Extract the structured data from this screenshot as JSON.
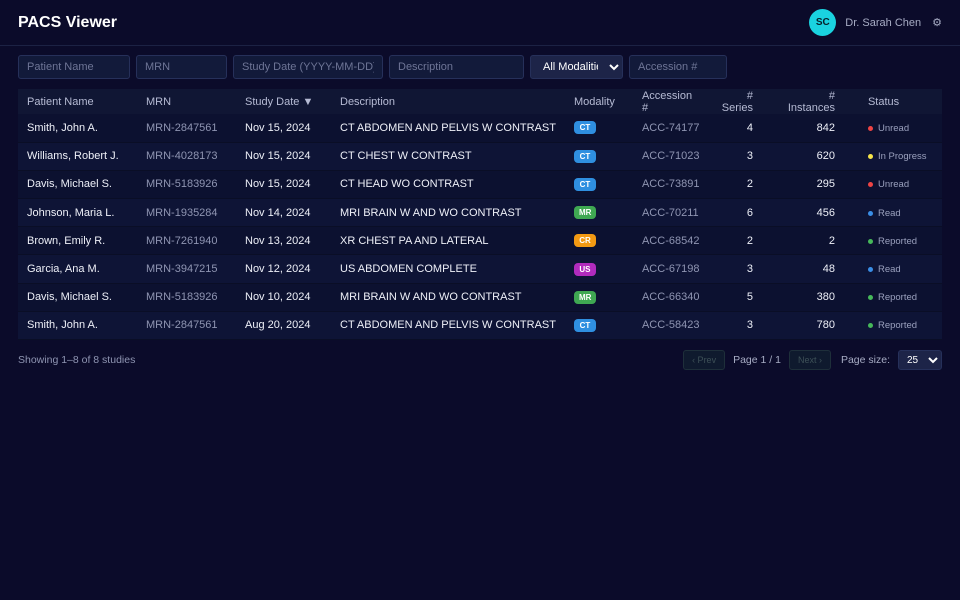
{
  "header": {
    "title": "PACS Viewer",
    "user_initials": "SC",
    "user_name": "Dr. Sarah Chen",
    "settings_icon": "⚙"
  },
  "filters": {
    "patient_name_placeholder": "Patient Name",
    "mrn_placeholder": "MRN",
    "study_date_placeholder": "Study Date (YYYY-MM-DD)",
    "description_placeholder": "Description",
    "modality_selected": "All Modalities",
    "accession_placeholder": "Accession #"
  },
  "table": {
    "columns": {
      "patient": "Patient Name",
      "mrn": "MRN",
      "date": "Study Date ▼",
      "description": "Description",
      "modality": "Modality",
      "accession": "Accession #",
      "series": "# Series",
      "instances": "# Instances",
      "status": "Status"
    },
    "rows": [
      {
        "patient": "Smith, John A.",
        "mrn": "MRN-2847561",
        "date": "Nov 15, 2024",
        "description": "CT ABDOMEN AND PELVIS W CONTRAST",
        "modality": "CT",
        "accession": "ACC-74177",
        "series": "4",
        "instances": "842",
        "status": "Unread"
      },
      {
        "patient": "Williams, Robert J.",
        "mrn": "MRN-4028173",
        "date": "Nov 15, 2024",
        "description": "CT CHEST W CONTRAST",
        "modality": "CT",
        "accession": "ACC-71023",
        "series": "3",
        "instances": "620",
        "status": "In Progress"
      },
      {
        "patient": "Davis, Michael S.",
        "mrn": "MRN-5183926",
        "date": "Nov 15, 2024",
        "description": "CT HEAD WO CONTRAST",
        "modality": "CT",
        "accession": "ACC-73891",
        "series": "2",
        "instances": "295",
        "status": "Unread"
      },
      {
        "patient": "Johnson, Maria L.",
        "mrn": "MRN-1935284",
        "date": "Nov 14, 2024",
        "description": "MRI BRAIN W AND WO CONTRAST",
        "modality": "MR",
        "accession": "ACC-70211",
        "series": "6",
        "instances": "456",
        "status": "Read"
      },
      {
        "patient": "Brown, Emily R.",
        "mrn": "MRN-7261940",
        "date": "Nov 13, 2024",
        "description": "XR CHEST PA AND LATERAL",
        "modality": "CR",
        "accession": "ACC-68542",
        "series": "2",
        "instances": "2",
        "status": "Reported"
      },
      {
        "patient": "Garcia, Ana M.",
        "mrn": "MRN-3947215",
        "date": "Nov 12, 2024",
        "description": "US ABDOMEN COMPLETE",
        "modality": "US",
        "accession": "ACC-67198",
        "series": "3",
        "instances": "48",
        "status": "Read"
      },
      {
        "patient": "Davis, Michael S.",
        "mrn": "MRN-5183926",
        "date": "Nov 10, 2024",
        "description": "MRI BRAIN W AND WO CONTRAST",
        "modality": "MR",
        "accession": "ACC-66340",
        "series": "5",
        "instances": "380",
        "status": "Reported"
      },
      {
        "patient": "Smith, John A.",
        "mrn": "MRN-2847561",
        "date": "Aug 20, 2024",
        "description": "CT ABDOMEN AND PELVIS W CONTRAST",
        "modality": "CT",
        "accession": "ACC-58423",
        "series": "3",
        "instances": "780",
        "status": "Reported"
      }
    ]
  },
  "modality_colors": {
    "CT": "#2f8fe0",
    "MR": "#3fa852",
    "CR": "#f39a13",
    "US": "#b12bbd"
  },
  "status_colors": {
    "Unread": "#ef4444",
    "In Progress": "#f7e54a",
    "Read": "#3a8ee6",
    "Reported": "#46b85a"
  },
  "footer": {
    "showing": "Showing 1–8 of 8 studies",
    "prev": "‹ Prev",
    "page_info": "Page 1 / 1",
    "next": "Next ›",
    "page_size_label": "Page size:",
    "page_size": "25"
  }
}
